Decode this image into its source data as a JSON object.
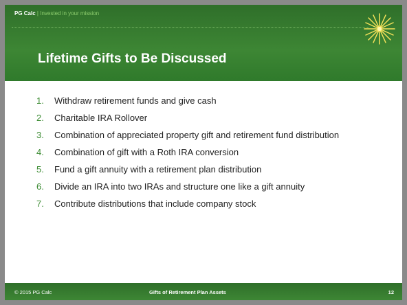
{
  "header": {
    "brand": "PG Calc",
    "separator": "|",
    "tagline": "Invested in your mission"
  },
  "title": "Lifetime Gifts to Be Discussed",
  "items": [
    {
      "number": "1.",
      "text": "Withdraw retirement funds and give cash"
    },
    {
      "number": "2.",
      "text": "Charitable IRA Rollover"
    },
    {
      "number": "3.",
      "text": "Combination of appreciated property gift and retirement fund distribution"
    },
    {
      "number": "4.",
      "text": "Combination of gift with a Roth IRA conversion"
    },
    {
      "number": "5.",
      "text": "Fund a gift annuity with a retirement plan distribution"
    },
    {
      "number": "6.",
      "text": "Divide an IRA into two IRAs and structure one like a gift annuity"
    },
    {
      "number": "7.",
      "text": "Contribute distributions that include company stock"
    }
  ],
  "footer": {
    "copyright": "© 2015 PG Calc",
    "title": "Gifts of Retirement Plan Assets",
    "page": 12
  }
}
